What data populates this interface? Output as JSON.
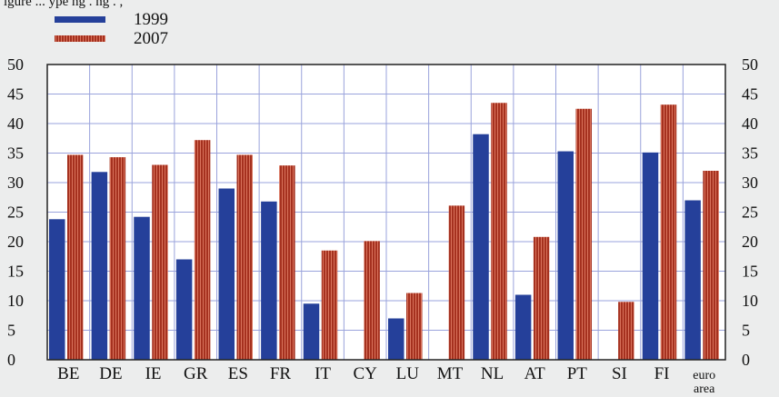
{
  "caption_cut": "igure ... ype                                                          ng .  ng .  ,",
  "chart_data": {
    "type": "bar",
    "categories": [
      "BE",
      "DE",
      "IE",
      "GR",
      "ES",
      "FR",
      "IT",
      "CY",
      "LU",
      "MT",
      "NL",
      "AT",
      "PT",
      "SI",
      "FI",
      "euro area"
    ],
    "series": [
      {
        "name": "1999",
        "values": [
          23.8,
          31.8,
          24.2,
          17.0,
          29.0,
          26.8,
          9.5,
          null,
          7.0,
          null,
          38.2,
          11.0,
          35.3,
          null,
          35.1,
          27.0
        ]
      },
      {
        "name": "2007",
        "values": [
          34.7,
          34.3,
          33.0,
          37.2,
          34.7,
          32.9,
          18.5,
          20.1,
          11.3,
          26.1,
          43.5,
          20.8,
          42.5,
          9.8,
          43.2,
          32.0
        ]
      }
    ],
    "ylim": [
      0,
      50
    ],
    "yticks": [
      "0",
      "5",
      "10",
      "15",
      "20",
      "25",
      "30",
      "35",
      "40",
      "45",
      "50"
    ],
    "grid": true,
    "legend": "top-left",
    "colors": {
      "1999": "#25409a",
      "2007": "#a5311f",
      "2007_stripe": "#d9735c",
      "grid": "#9aa3dc"
    }
  }
}
